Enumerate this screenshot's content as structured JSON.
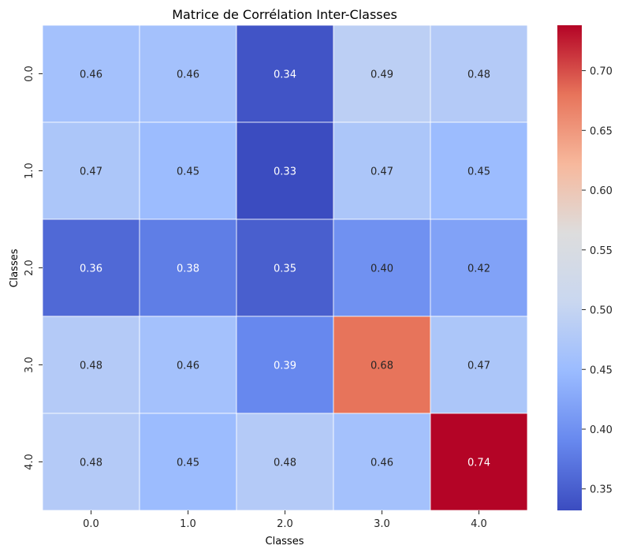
{
  "chart_data": {
    "type": "heatmap",
    "title": "Matrice de Corrélation Inter-Classes",
    "xlabel": "Classes",
    "ylabel": "Classes",
    "x_categories": [
      "0.0",
      "1.0",
      "2.0",
      "3.0",
      "4.0"
    ],
    "y_categories": [
      "0.0",
      "1.0",
      "2.0",
      "3.0",
      "4.0"
    ],
    "values": [
      [
        0.46,
        0.46,
        0.34,
        0.49,
        0.48
      ],
      [
        0.47,
        0.45,
        0.33,
        0.47,
        0.45
      ],
      [
        0.36,
        0.38,
        0.35,
        0.4,
        0.42
      ],
      [
        0.48,
        0.46,
        0.39,
        0.68,
        0.47
      ],
      [
        0.48,
        0.45,
        0.48,
        0.46,
        0.74
      ]
    ],
    "value_labels": [
      [
        "0.46",
        "0.46",
        "0.34",
        "0.49",
        "0.48"
      ],
      [
        "0.47",
        "0.45",
        "0.33",
        "0.47",
        "0.45"
      ],
      [
        "0.36",
        "0.38",
        "0.35",
        "0.40",
        "0.42"
      ],
      [
        "0.48",
        "0.46",
        "0.39",
        "0.68",
        "0.47"
      ],
      [
        "0.48",
        "0.45",
        "0.48",
        "0.46",
        "0.74"
      ]
    ],
    "colormap": "coolwarm",
    "colormap_stops": [
      "#3b4cc0",
      "#6788ee",
      "#9abbff",
      "#c9d7f0",
      "#dddddd",
      "#f7b89c",
      "#e7745b",
      "#b40426"
    ],
    "vmin": 0.332,
    "vmax": 0.738,
    "colorbar_ticks": [
      "0.35",
      "0.40",
      "0.45",
      "0.50",
      "0.55",
      "0.60",
      "0.65",
      "0.70"
    ],
    "colorbar_tick_values": [
      0.35,
      0.4,
      0.45,
      0.5,
      0.55,
      0.6,
      0.65,
      0.7
    ],
    "grid": true,
    "grid_color": "#ffffff"
  }
}
